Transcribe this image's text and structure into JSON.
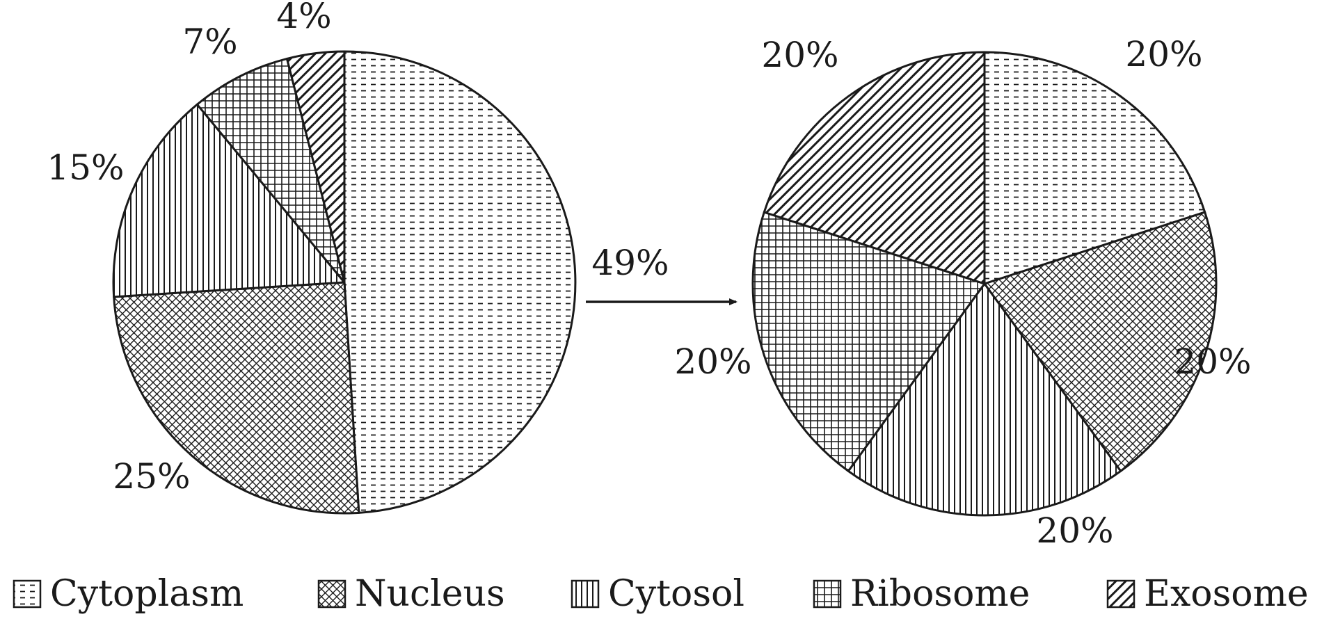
{
  "chart_data": [
    {
      "type": "pie",
      "categories": [
        "Cytoplasm",
        "Nucleus",
        "Cytosol",
        "Ribosome",
        "Exosome"
      ],
      "values": [
        49,
        25,
        15,
        7,
        4
      ],
      "labels": [
        "49%",
        "25%",
        "15%",
        "7%",
        "4%"
      ]
    },
    {
      "type": "pie",
      "categories": [
        "Cytoplasm",
        "Nucleus",
        "Cytosol",
        "Ribosome",
        "Exosome"
      ],
      "values": [
        20,
        20,
        20,
        20,
        20
      ],
      "labels": [
        "20%",
        "20%",
        "20%",
        "20%",
        "20%"
      ]
    }
  ],
  "legend": {
    "position": "bottom",
    "items": [
      {
        "label": "Cytoplasm",
        "pattern": "dashes"
      },
      {
        "label": "Nucleus",
        "pattern": "crosshatch"
      },
      {
        "label": "Cytosol",
        "pattern": "vertical-lines"
      },
      {
        "label": "Ribosome",
        "pattern": "grid"
      },
      {
        "label": "Exosome",
        "pattern": "diagonal-lines"
      }
    ]
  },
  "colors": {
    "ink": "#1a1a1a",
    "background": "#ffffff"
  }
}
